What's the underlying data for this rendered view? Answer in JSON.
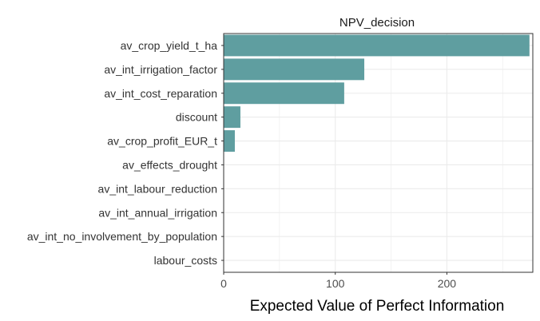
{
  "chart_data": {
    "type": "bar",
    "orientation": "horizontal",
    "title": "NPV_decision",
    "xlabel": "Expected Value of Perfect Information",
    "ylabel": "",
    "xlim": [
      0,
      277
    ],
    "xticks": [
      0,
      100,
      200
    ],
    "grid": true,
    "bar_color": "#5f9ea0",
    "categories": [
      "av_crop_yield_t_ha",
      "av_int_irrigation_factor",
      "av_int_cost_reparation",
      "discount",
      "av_crop_profit_EUR_t",
      "av_effects_drought",
      "av_int_labour_reduction",
      "av_int_annual_irrigation",
      "av_int_no_involvement_by_population",
      "labour_costs"
    ],
    "values": [
      274,
      126,
      108,
      15,
      10,
      0,
      0,
      0,
      0,
      0
    ]
  }
}
